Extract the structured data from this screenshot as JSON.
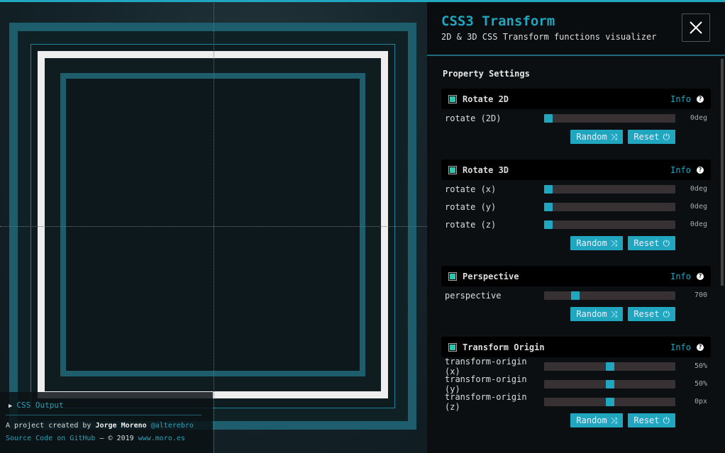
{
  "header": {
    "title": "CSS3 Transform",
    "subtitle": "2D & 3D CSS Transform functions visualizer",
    "close_icon": "close-icon"
  },
  "settings_title": "Property Settings",
  "accent": "#21a6c0",
  "sections": [
    {
      "title": "Rotate 2D",
      "info": "Info",
      "rows": [
        {
          "label": "rotate (2D)",
          "value": "0deg",
          "position": 0
        }
      ],
      "random": "Random",
      "reset": "Reset"
    },
    {
      "title": "Rotate 3D",
      "info": "Info",
      "rows": [
        {
          "label": "rotate (x)",
          "value": "0deg",
          "position": 0
        },
        {
          "label": "rotate (y)",
          "value": "0deg",
          "position": 0
        },
        {
          "label": "rotate (z)",
          "value": "0deg",
          "position": 0
        }
      ],
      "random": "Random",
      "reset": "Reset"
    },
    {
      "title": "Perspective",
      "info": "Info",
      "rows": [
        {
          "label": "perspective",
          "value": "700",
          "position": 0.22
        }
      ],
      "random": "Random",
      "reset": "Reset"
    },
    {
      "title": "Transform Origin",
      "info": "Info",
      "rows": [
        {
          "label": "transform-origin (x)",
          "value": "50%",
          "position": 0.5
        },
        {
          "label": "transform-origin (y)",
          "value": "50%",
          "position": 0.5
        },
        {
          "label": "transform-origin (z)",
          "value": "0px",
          "position": 0.5
        }
      ],
      "random": "Random",
      "reset": "Reset"
    }
  ],
  "footer": {
    "css_output": "CSS Output",
    "credit_prefix": "A project created by",
    "author": "Jorge Moreno",
    "handle": "@alterebro",
    "source": "Source Code on GitHub",
    "copyright": "— © 2019",
    "site": "www.moro.es"
  }
}
